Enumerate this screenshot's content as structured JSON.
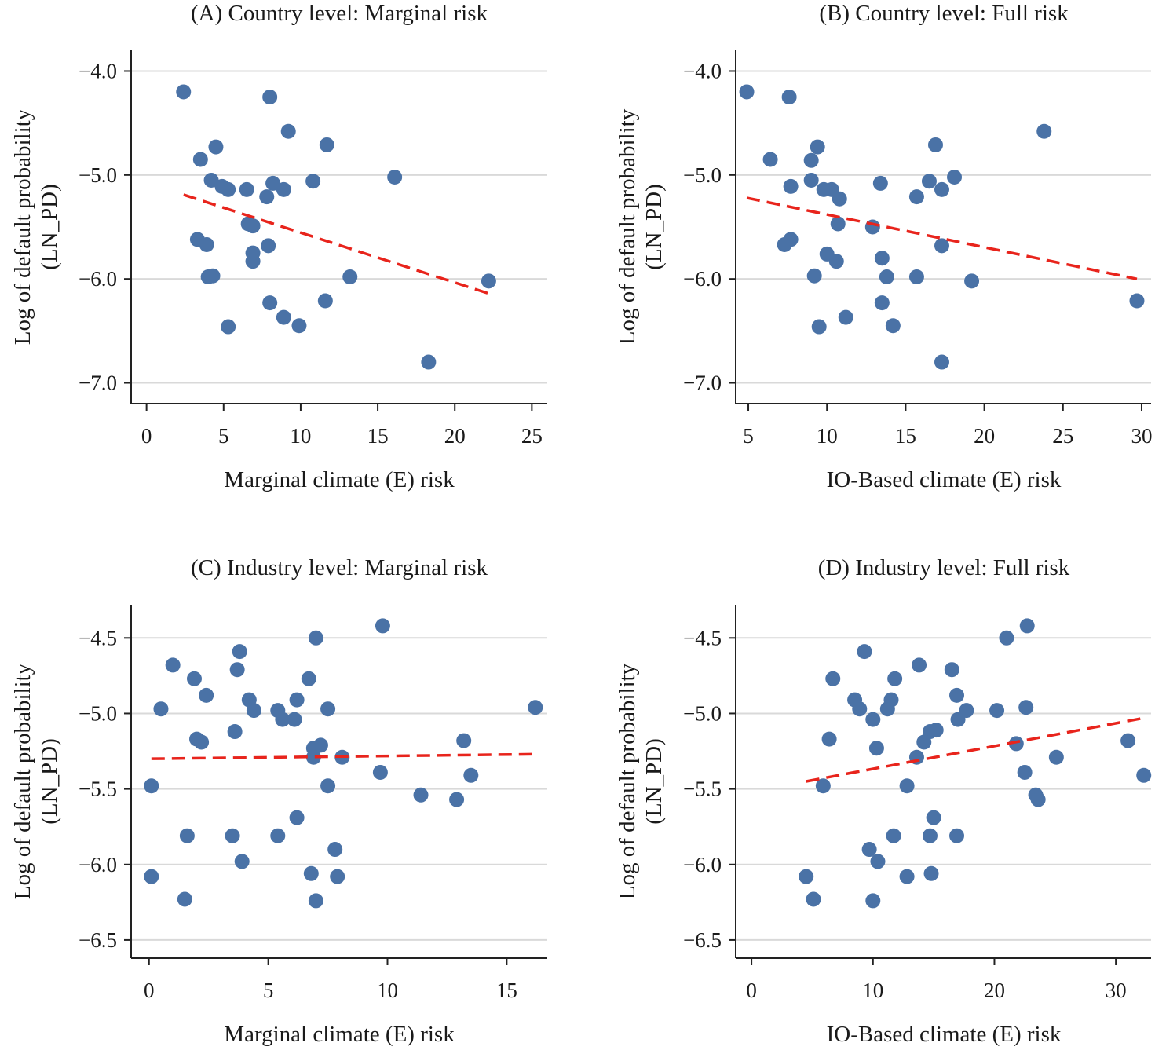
{
  "colors": {
    "points": "#4a72a6",
    "fit_line": "#e8241c"
  },
  "chart_data": [
    {
      "type": "scatter",
      "title": "(A) Country level: Marginal risk",
      "xlabel": "Marginal climate (E) risk",
      "ylabel": [
        "Log of default probability",
        "(LN_PD)"
      ],
      "xlim": [
        -1,
        26
      ],
      "ylim": [
        -7.2,
        -3.8
      ],
      "xticks": [
        0,
        5,
        10,
        15,
        20,
        25
      ],
      "xtick_labels": [
        "0",
        "5",
        "10",
        "15",
        "20",
        "25"
      ],
      "yticks": [
        -4.0,
        -5.0,
        -6.0,
        -7.0
      ],
      "ytick_labels": [
        "−4.0",
        "−5.0",
        "−6.0",
        "−7.0"
      ],
      "grid": true,
      "points": [
        {
          "x": 2.4,
          "y": -4.2
        },
        {
          "x": 8.0,
          "y": -4.25
        },
        {
          "x": 9.2,
          "y": -4.58
        },
        {
          "x": 4.5,
          "y": -4.73
        },
        {
          "x": 11.7,
          "y": -4.71
        },
        {
          "x": 3.5,
          "y": -4.85
        },
        {
          "x": 4.2,
          "y": -5.05
        },
        {
          "x": 4.9,
          "y": -5.11
        },
        {
          "x": 5.3,
          "y": -5.14
        },
        {
          "x": 6.5,
          "y": -5.14
        },
        {
          "x": 8.2,
          "y": -5.08
        },
        {
          "x": 8.9,
          "y": -5.14
        },
        {
          "x": 10.8,
          "y": -5.06
        },
        {
          "x": 16.1,
          "y": -5.02
        },
        {
          "x": 7.8,
          "y": -5.21
        },
        {
          "x": 6.6,
          "y": -5.47
        },
        {
          "x": 6.9,
          "y": -5.49
        },
        {
          "x": 3.3,
          "y": -5.62
        },
        {
          "x": 3.9,
          "y": -5.67
        },
        {
          "x": 7.9,
          "y": -5.68
        },
        {
          "x": 6.9,
          "y": -5.75
        },
        {
          "x": 6.9,
          "y": -5.83
        },
        {
          "x": 4.0,
          "y": -5.98
        },
        {
          "x": 4.3,
          "y": -5.97
        },
        {
          "x": 13.2,
          "y": -5.98
        },
        {
          "x": 22.2,
          "y": -6.02
        },
        {
          "x": 8.0,
          "y": -6.23
        },
        {
          "x": 11.6,
          "y": -6.21
        },
        {
          "x": 8.9,
          "y": -6.37
        },
        {
          "x": 5.3,
          "y": -6.46
        },
        {
          "x": 9.9,
          "y": -6.45
        },
        {
          "x": 18.3,
          "y": -6.8
        }
      ],
      "fit_line": {
        "x": [
          2.4,
          22.2
        ],
        "y": [
          -5.19,
          -6.14
        ]
      }
    },
    {
      "type": "scatter",
      "title": "(B) Country level: Full risk",
      "xlabel": "IO-Based climate (E) risk",
      "ylabel": [
        "Log of default probability",
        "(LN_PD)"
      ],
      "xlim": [
        4.2,
        30.6
      ],
      "ylim": [
        -7.2,
        -3.8
      ],
      "xticks": [
        5,
        10,
        15,
        20,
        25,
        30
      ],
      "xtick_labels": [
        "5",
        "10",
        "15",
        "20",
        "25",
        "30"
      ],
      "yticks": [
        -4.0,
        -5.0,
        -6.0,
        -7.0
      ],
      "ytick_labels": [
        "−4.0",
        "−5.0",
        "−6.0",
        "−7.0"
      ],
      "grid": true,
      "points": [
        {
          "x": 4.9,
          "y": -4.2
        },
        {
          "x": 7.6,
          "y": -4.25
        },
        {
          "x": 23.8,
          "y": -4.58
        },
        {
          "x": 6.4,
          "y": -4.85
        },
        {
          "x": 9.4,
          "y": -4.73
        },
        {
          "x": 16.9,
          "y": -4.71
        },
        {
          "x": 9.0,
          "y": -4.86
        },
        {
          "x": 7.7,
          "y": -5.11
        },
        {
          "x": 9.0,
          "y": -5.05
        },
        {
          "x": 9.8,
          "y": -5.14
        },
        {
          "x": 10.3,
          "y": -5.14
        },
        {
          "x": 10.8,
          "y": -5.23
        },
        {
          "x": 13.4,
          "y": -5.08
        },
        {
          "x": 15.7,
          "y": -5.21
        },
        {
          "x": 16.5,
          "y": -5.06
        },
        {
          "x": 17.3,
          "y": -5.14
        },
        {
          "x": 18.1,
          "y": -5.02
        },
        {
          "x": 10.7,
          "y": -5.47
        },
        {
          "x": 12.9,
          "y": -5.5
        },
        {
          "x": 7.3,
          "y": -5.67
        },
        {
          "x": 7.7,
          "y": -5.62
        },
        {
          "x": 17.3,
          "y": -5.68
        },
        {
          "x": 10.0,
          "y": -5.76
        },
        {
          "x": 10.6,
          "y": -5.83
        },
        {
          "x": 13.5,
          "y": -5.8
        },
        {
          "x": 9.2,
          "y": -5.97
        },
        {
          "x": 13.8,
          "y": -5.98
        },
        {
          "x": 15.7,
          "y": -5.98
        },
        {
          "x": 19.2,
          "y": -6.02
        },
        {
          "x": 29.7,
          "y": -6.21
        },
        {
          "x": 13.5,
          "y": -6.23
        },
        {
          "x": 11.2,
          "y": -6.37
        },
        {
          "x": 9.5,
          "y": -6.46
        },
        {
          "x": 14.2,
          "y": -6.45
        },
        {
          "x": 17.3,
          "y": -6.8
        }
      ],
      "fit_line": {
        "x": [
          4.9,
          29.7
        ],
        "y": [
          -5.22,
          -6.0
        ]
      }
    },
    {
      "type": "scatter",
      "title": "(C) Industry level: Marginal risk",
      "xlabel": "Marginal climate (E) risk",
      "ylabel": [
        "Log of default probability",
        "(LN_PD)"
      ],
      "xlim": [
        -0.75,
        16.7
      ],
      "ylim": [
        -6.62,
        -4.28
      ],
      "xticks": [
        0,
        5,
        10,
        15
      ],
      "xtick_labels": [
        "0",
        "5",
        "10",
        "15"
      ],
      "yticks": [
        -4.5,
        -5.0,
        -5.5,
        -6.0,
        -6.5
      ],
      "ytick_labels": [
        "−4.5",
        "−5.0",
        "−5.5",
        "−6.0",
        "−6.5"
      ],
      "grid": true,
      "points": [
        {
          "x": 9.8,
          "y": -4.42
        },
        {
          "x": 7.0,
          "y": -4.5
        },
        {
          "x": 3.8,
          "y": -4.59
        },
        {
          "x": 1.0,
          "y": -4.68
        },
        {
          "x": 3.7,
          "y": -4.71
        },
        {
          "x": 1.9,
          "y": -4.77
        },
        {
          "x": 6.7,
          "y": -4.77
        },
        {
          "x": 2.4,
          "y": -4.88
        },
        {
          "x": 4.2,
          "y": -4.91
        },
        {
          "x": 6.2,
          "y": -4.91
        },
        {
          "x": 0.5,
          "y": -4.97
        },
        {
          "x": 4.4,
          "y": -4.98
        },
        {
          "x": 5.4,
          "y": -4.98
        },
        {
          "x": 7.5,
          "y": -4.97
        },
        {
          "x": 16.2,
          "y": -4.96
        },
        {
          "x": 5.6,
          "y": -5.04
        },
        {
          "x": 6.1,
          "y": -5.04
        },
        {
          "x": 3.6,
          "y": -5.12
        },
        {
          "x": 2.0,
          "y": -5.17
        },
        {
          "x": 2.2,
          "y": -5.19
        },
        {
          "x": 7.2,
          "y": -5.21
        },
        {
          "x": 13.2,
          "y": -5.18
        },
        {
          "x": 6.9,
          "y": -5.23
        },
        {
          "x": 6.9,
          "y": -5.29
        },
        {
          "x": 8.1,
          "y": -5.29
        },
        {
          "x": 9.7,
          "y": -5.39
        },
        {
          "x": 13.5,
          "y": -5.41
        },
        {
          "x": 0.1,
          "y": -5.48
        },
        {
          "x": 7.5,
          "y": -5.48
        },
        {
          "x": 11.4,
          "y": -5.54
        },
        {
          "x": 12.9,
          "y": -5.57
        },
        {
          "x": 6.2,
          "y": -5.69
        },
        {
          "x": 1.6,
          "y": -5.81
        },
        {
          "x": 3.5,
          "y": -5.81
        },
        {
          "x": 5.4,
          "y": -5.81
        },
        {
          "x": 7.8,
          "y": -5.9
        },
        {
          "x": 3.9,
          "y": -5.98
        },
        {
          "x": 6.8,
          "y": -6.06
        },
        {
          "x": 0.1,
          "y": -6.08
        },
        {
          "x": 7.9,
          "y": -6.08
        },
        {
          "x": 1.5,
          "y": -6.23
        },
        {
          "x": 7.0,
          "y": -6.24
        }
      ],
      "fit_line": {
        "x": [
          0.1,
          16.2
        ],
        "y": [
          -5.3,
          -5.27
        ]
      }
    },
    {
      "type": "scatter",
      "title": "(D) Industry level: Full risk",
      "xlabel": "IO-Based climate (E) risk",
      "ylabel": [
        "Log of default probability",
        "(LN_PD)"
      ],
      "xlim": [
        -1.3,
        32.9
      ],
      "ylim": [
        -6.62,
        -4.28
      ],
      "xticks": [
        0,
        10,
        20,
        30
      ],
      "xtick_labels": [
        "0",
        "10",
        "20",
        "30"
      ],
      "yticks": [
        -4.5,
        -5.0,
        -5.5,
        -6.0,
        -6.5
      ],
      "ytick_labels": [
        "−4.5",
        "−5.0",
        "−5.5",
        "−6.0",
        "−6.5"
      ],
      "grid": true,
      "points": [
        {
          "x": 22.7,
          "y": -4.42
        },
        {
          "x": 21.0,
          "y": -4.5
        },
        {
          "x": 9.3,
          "y": -4.59
        },
        {
          "x": 13.8,
          "y": -4.68
        },
        {
          "x": 16.5,
          "y": -4.71
        },
        {
          "x": 6.7,
          "y": -4.77
        },
        {
          "x": 11.8,
          "y": -4.77
        },
        {
          "x": 16.9,
          "y": -4.88
        },
        {
          "x": 8.5,
          "y": -4.91
        },
        {
          "x": 11.5,
          "y": -4.91
        },
        {
          "x": 8.9,
          "y": -4.97
        },
        {
          "x": 11.2,
          "y": -4.97
        },
        {
          "x": 17.7,
          "y": -4.98
        },
        {
          "x": 20.2,
          "y": -4.98
        },
        {
          "x": 22.6,
          "y": -4.96
        },
        {
          "x": 10.0,
          "y": -5.04
        },
        {
          "x": 17.0,
          "y": -5.04
        },
        {
          "x": 15.2,
          "y": -5.11
        },
        {
          "x": 14.7,
          "y": -5.12
        },
        {
          "x": 6.4,
          "y": -5.17
        },
        {
          "x": 14.2,
          "y": -5.19
        },
        {
          "x": 21.8,
          "y": -5.2
        },
        {
          "x": 10.3,
          "y": -5.23
        },
        {
          "x": 31.0,
          "y": -5.18
        },
        {
          "x": 13.6,
          "y": -5.29
        },
        {
          "x": 25.1,
          "y": -5.29
        },
        {
          "x": 22.5,
          "y": -5.39
        },
        {
          "x": 32.3,
          "y": -5.41
        },
        {
          "x": 5.9,
          "y": -5.48
        },
        {
          "x": 12.8,
          "y": -5.48
        },
        {
          "x": 23.4,
          "y": -5.54
        },
        {
          "x": 23.6,
          "y": -5.57
        },
        {
          "x": 15.0,
          "y": -5.69
        },
        {
          "x": 11.7,
          "y": -5.81
        },
        {
          "x": 14.7,
          "y": -5.81
        },
        {
          "x": 16.9,
          "y": -5.81
        },
        {
          "x": 9.7,
          "y": -5.9
        },
        {
          "x": 10.4,
          "y": -5.98
        },
        {
          "x": 14.8,
          "y": -6.06
        },
        {
          "x": 4.5,
          "y": -6.08
        },
        {
          "x": 12.8,
          "y": -6.08
        },
        {
          "x": 5.1,
          "y": -6.23
        },
        {
          "x": 10.0,
          "y": -6.24
        }
      ],
      "fit_line": {
        "x": [
          4.5,
          32.3
        ],
        "y": [
          -5.45,
          -5.03
        ]
      }
    }
  ]
}
